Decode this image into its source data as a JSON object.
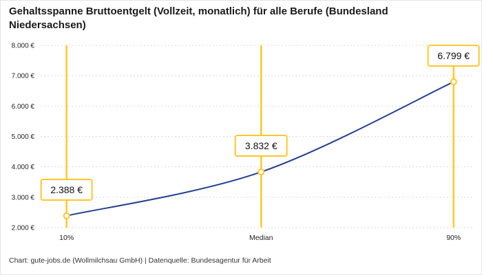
{
  "header": {
    "title": "Gehaltsspanne Bruttoentgelt (Vollzeit, monatlich) für alle Berufe (Bundesland Niedersachsen)"
  },
  "footer": {
    "credit": "Chart: gute-jobs.de (Wollmilchsau GmbH) | Datenquelle: Bundesagentur für Arbeit"
  },
  "chart_data": {
    "type": "line",
    "title": "Gehaltsspanne Bruttoentgelt (Vollzeit, monatlich) für alle Berufe (Bundesland Niedersachsen)",
    "categories": [
      "10%",
      "Median",
      "90%"
    ],
    "values": [
      2388,
      3832,
      6799
    ],
    "point_labels": [
      "2.388 €",
      "3.832 €",
      "6.799 €"
    ],
    "xlabel": "",
    "ylabel": "",
    "ylim": [
      2000,
      8000
    ],
    "y_tick_step": 1000,
    "y_tick_labels": [
      "2.000 €",
      "3.000 €",
      "4.000 €",
      "5.000 €",
      "6.000 €",
      "7.000 €",
      "8.000 €"
    ],
    "grid": "horizontal-dashed",
    "legend": "none",
    "colors": {
      "line": "#24408f",
      "marker_fill": "#ffffff",
      "marker_stroke": "#FFC72C",
      "vertical_line": "#FFC72C",
      "callout_border": "#FFC72C",
      "grid": "#d9d9d9",
      "text": "#222222"
    }
  }
}
